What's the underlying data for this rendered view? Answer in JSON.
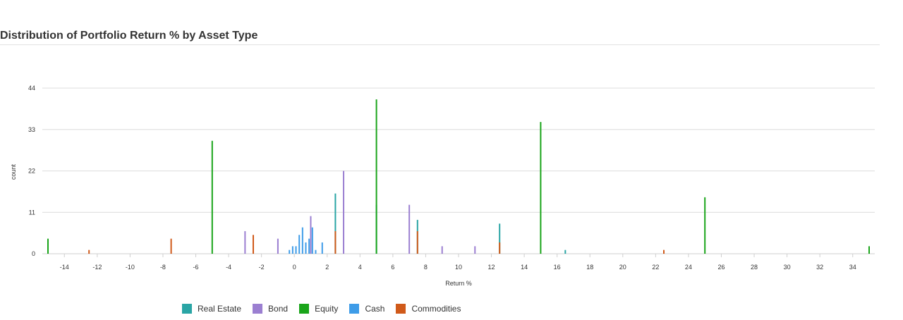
{
  "chart_data": {
    "type": "bar",
    "title": "Distribution of Portfolio Return % by Asset Type",
    "xlabel": "Return %",
    "ylabel": "count",
    "xlim": [
      -15,
      35
    ],
    "ylim": [
      0,
      44
    ],
    "xticks": [
      -14,
      -12,
      -10,
      -8,
      -6,
      -4,
      -2,
      0,
      2,
      4,
      6,
      8,
      10,
      12,
      14,
      16,
      18,
      20,
      22,
      24,
      26,
      28,
      30,
      32,
      34
    ],
    "yticks": [
      0,
      11,
      22,
      33,
      44
    ],
    "grid": true,
    "legend_position": "bottom-left",
    "series": [
      {
        "name": "Real Estate",
        "color": "#2aa5a5",
        "points": [
          [
            2.5,
            16
          ],
          [
            5,
            13
          ],
          [
            7.5,
            9
          ],
          [
            12.5,
            8
          ],
          [
            16.5,
            1
          ]
        ]
      },
      {
        "name": "Bond",
        "color": "#9b7fd1",
        "points": [
          [
            -3,
            6
          ],
          [
            -1,
            4
          ],
          [
            1,
            10
          ],
          [
            3,
            22
          ],
          [
            7,
            13
          ],
          [
            9,
            2
          ],
          [
            11,
            2
          ]
        ]
      },
      {
        "name": "Equity",
        "color": "#1aa51a",
        "points": [
          [
            -15,
            4
          ],
          [
            -5,
            30
          ],
          [
            5,
            41
          ],
          [
            15,
            35
          ],
          [
            25,
            15
          ],
          [
            35,
            2
          ]
        ]
      },
      {
        "name": "Cash",
        "color": "#3e9ce8",
        "points": [
          [
            -0.3,
            1
          ],
          [
            -0.1,
            2
          ],
          [
            0.1,
            2
          ],
          [
            0.3,
            5
          ],
          [
            0.5,
            7
          ],
          [
            0.7,
            3
          ],
          [
            0.9,
            4
          ],
          [
            1.1,
            7
          ],
          [
            1.3,
            1
          ],
          [
            1.7,
            3
          ]
        ]
      },
      {
        "name": "Commodities",
        "color": "#d05a1a",
        "points": [
          [
            -12.5,
            1
          ],
          [
            -7.5,
            4
          ],
          [
            -2.5,
            5
          ],
          [
            2.5,
            6
          ],
          [
            7.5,
            6
          ],
          [
            12.5,
            3
          ],
          [
            22.5,
            1
          ]
        ]
      }
    ]
  }
}
